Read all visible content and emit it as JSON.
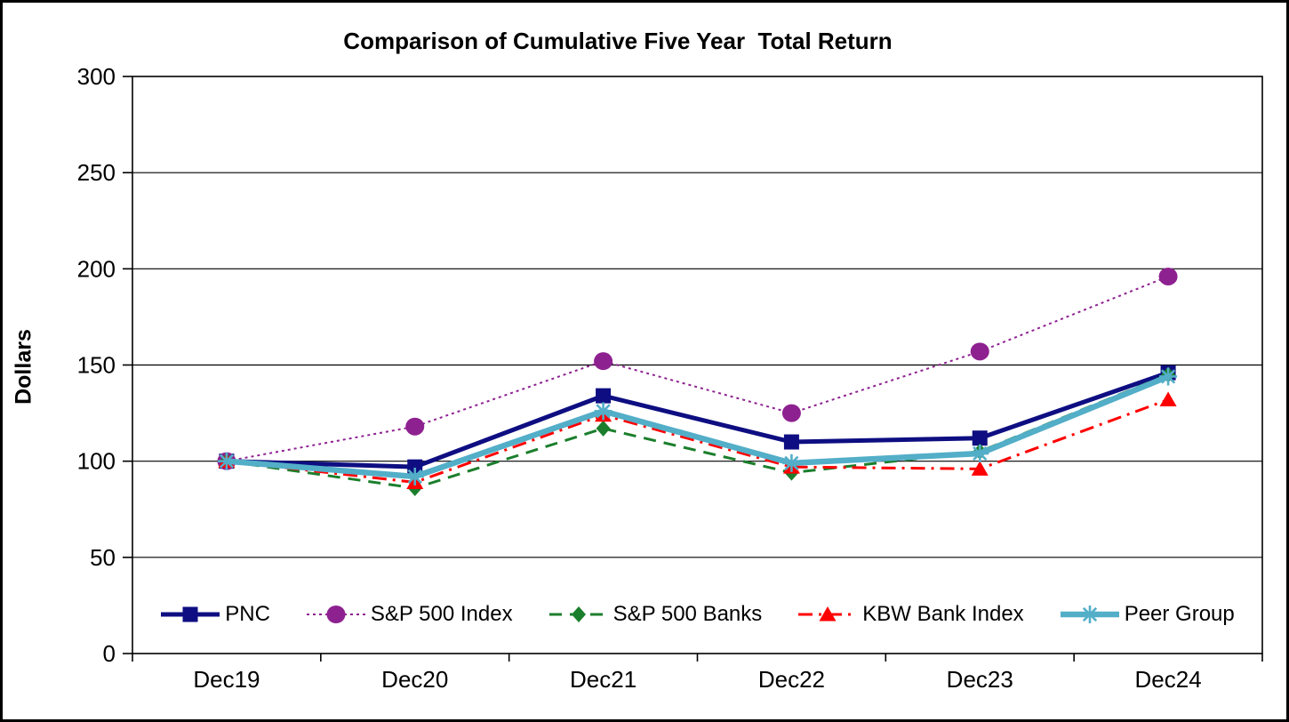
{
  "chart_data": {
    "type": "line",
    "title": "Comparison of Cumulative Five Year  Total Return",
    "ylabel": "Dollars",
    "xlabel": "",
    "categories": [
      "Dec19",
      "Dec20",
      "Dec21",
      "Dec22",
      "Dec23",
      "Dec24"
    ],
    "ylim": [
      0,
      300
    ],
    "ytick_step": 50,
    "ytick_labels": [
      "0",
      "50",
      "100",
      "150",
      "200",
      "250",
      "300"
    ],
    "grid": "horizontal-only",
    "axis_color": "#000000",
    "background_color": "#ffffff",
    "legend_position": "bottom-inside",
    "series": [
      {
        "name": "PNC",
        "color": "#0E0E82",
        "line_style": "solid",
        "line_width": 5,
        "marker": "square",
        "values": [
          100,
          97,
          134,
          110,
          112,
          146
        ]
      },
      {
        "name": "S&P 500 Index",
        "color": "#8E2190",
        "line_style": "dotted",
        "line_width": 2,
        "marker": "circle",
        "values": [
          100,
          118,
          152,
          125,
          157,
          196
        ]
      },
      {
        "name": "S&P 500 Banks",
        "color": "#1B7E2C",
        "line_style": "dashed",
        "line_width": 3,
        "marker": "diamond",
        "values": [
          100,
          86,
          117,
          94,
          105,
          145
        ]
      },
      {
        "name": "KBW Bank Index",
        "color": "#FF0000",
        "line_style": "dash-dot",
        "line_width": 3,
        "marker": "triangle",
        "values": [
          100,
          89,
          124,
          97,
          96,
          132
        ]
      },
      {
        "name": "Peer Group",
        "color": "#53AEC8",
        "line_style": "solid",
        "line_width": 6.5,
        "marker": "asterisk",
        "values": [
          100,
          92,
          126,
          99,
          104,
          144
        ]
      }
    ]
  }
}
